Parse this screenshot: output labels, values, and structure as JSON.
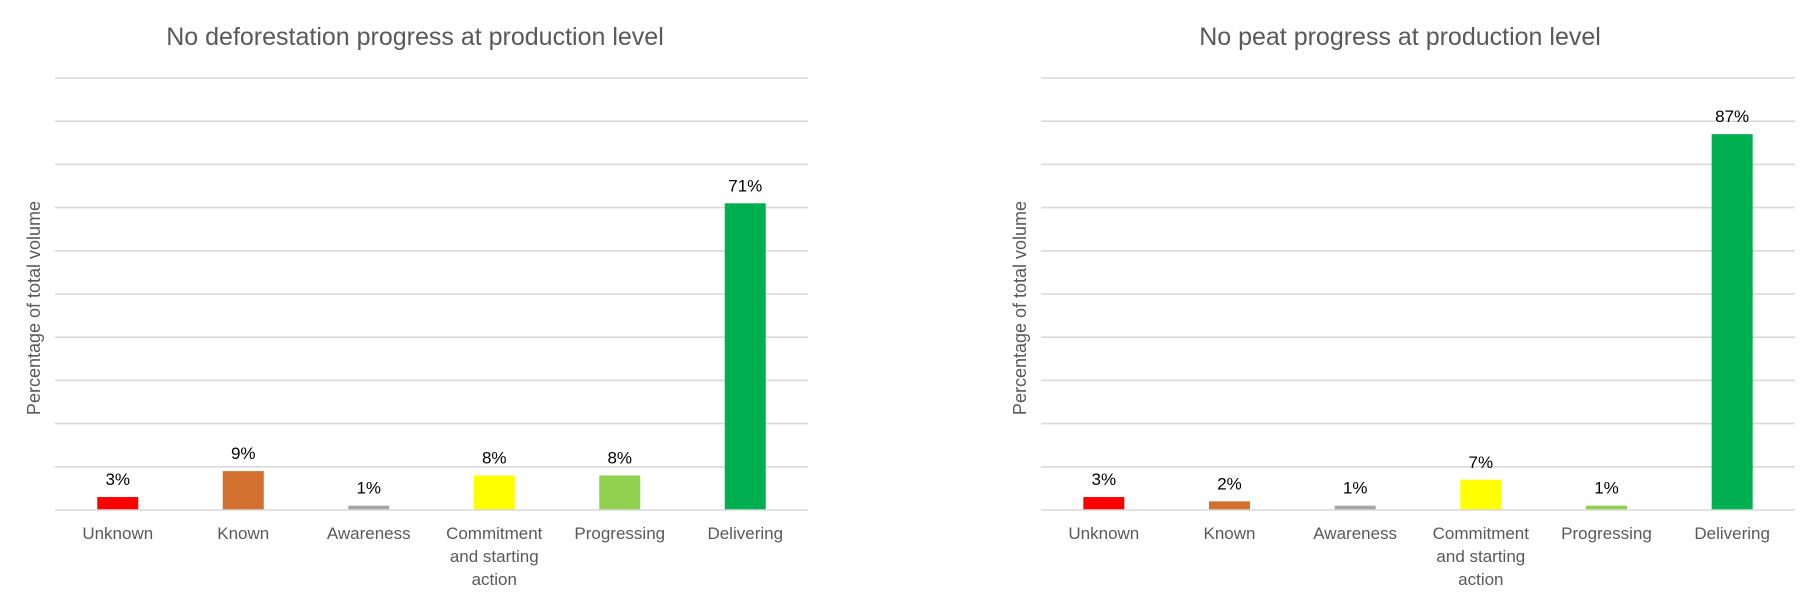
{
  "chart_data": [
    {
      "type": "bar",
      "title": "No deforestation progress at production level",
      "ylabel": "Percentage of total volume",
      "xlabel": "",
      "categories": [
        "Unknown",
        "Known",
        "Awareness",
        "Commitment and starting action",
        "Progressing",
        "Delivering"
      ],
      "category_lines": [
        [
          "Unknown"
        ],
        [
          "Known"
        ],
        [
          "Awareness"
        ],
        [
          "Commitment",
          "and starting",
          "action"
        ],
        [
          "Progressing"
        ],
        [
          "Delivering"
        ]
      ],
      "values": [
        3,
        9,
        1,
        8,
        8,
        71
      ],
      "data_labels": [
        "3%",
        "9%",
        "1%",
        "8%",
        "8%",
        "71%"
      ],
      "colors": [
        "#ff0000",
        "#d2702f",
        "#a6a6a6",
        "#ffff00",
        "#92d050",
        "#00b050"
      ],
      "ylim": [
        0,
        100
      ],
      "grid": true,
      "legend": "none"
    },
    {
      "type": "bar",
      "title": "No peat progress at production level",
      "ylabel": "Percentage of total volume",
      "xlabel": "",
      "categories": [
        "Unknown",
        "Known",
        "Awareness",
        "Commitment and starting action",
        "Progressing",
        "Delivering"
      ],
      "category_lines": [
        [
          "Unknown"
        ],
        [
          "Known"
        ],
        [
          "Awareness"
        ],
        [
          "Commitment",
          "and starting",
          "action"
        ],
        [
          "Progressing"
        ],
        [
          "Delivering"
        ]
      ],
      "values": [
        3,
        2,
        1,
        7,
        1,
        87
      ],
      "data_labels": [
        "3%",
        "2%",
        "1%",
        "7%",
        "1%",
        "87%"
      ],
      "colors": [
        "#ff0000",
        "#d2702f",
        "#a6a6a6",
        "#ffff00",
        "#92d050",
        "#00b050"
      ],
      "ylim": [
        0,
        100
      ],
      "grid": true,
      "legend": "none"
    }
  ]
}
